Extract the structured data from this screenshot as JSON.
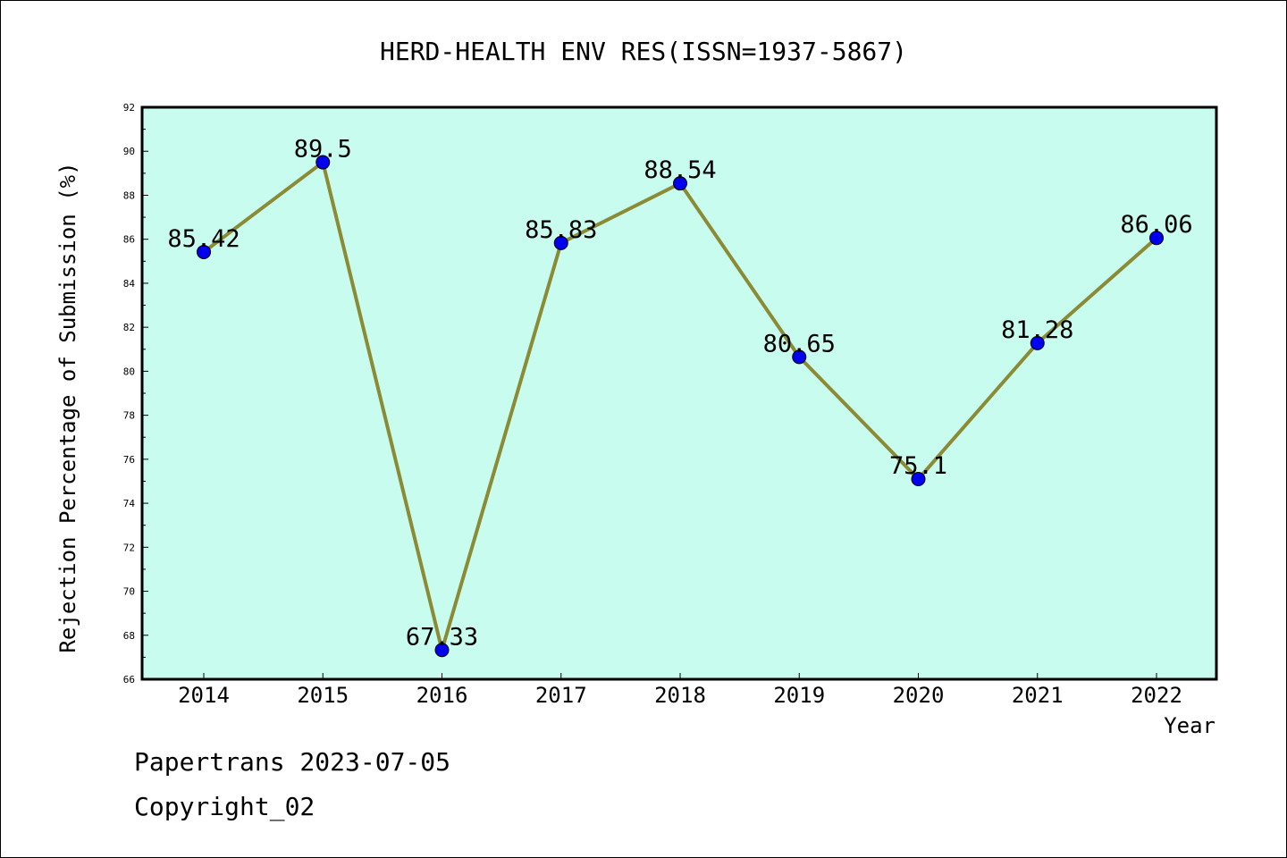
{
  "chart_data": {
    "type": "line",
    "title": "HERD-HEALTH ENV RES(ISSN=1937-5867)",
    "xlabel": "Year",
    "ylabel": "Rejection Percentage of Submission (%)",
    "categories": [
      "2014",
      "2015",
      "2016",
      "2017",
      "2018",
      "2019",
      "2020",
      "2021",
      "2022"
    ],
    "values": [
      85.42,
      89.5,
      67.33,
      85.83,
      88.54,
      80.65,
      75.1,
      81.28,
      86.06
    ],
    "data_labels": [
      "85.42",
      "89.5",
      "67.33",
      "85.83",
      "88.54",
      "80.65",
      "75.1",
      "81.28",
      "86.06"
    ],
    "ylim": [
      66,
      92
    ],
    "yticks": [
      "66",
      "68",
      "70",
      "72",
      "74",
      "76",
      "78",
      "80",
      "82",
      "84",
      "86",
      "88",
      "90",
      "92"
    ],
    "grid": false,
    "legend": "none",
    "colors": {
      "plot_background": "#c8fcee",
      "line": "#8b8a35",
      "marker": "#0000ee",
      "axis": "#000000"
    }
  },
  "footer": {
    "line1": "Papertrans 2023-07-05",
    "line2": "Copyright_02"
  }
}
